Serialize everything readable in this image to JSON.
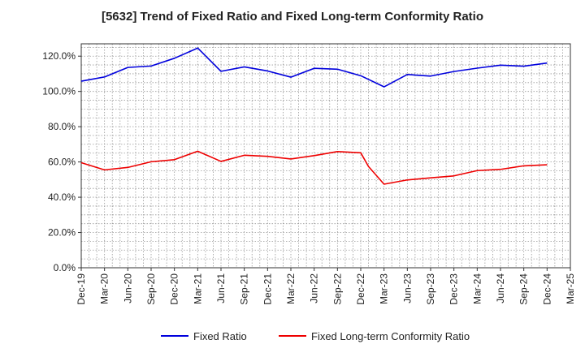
{
  "chart_data": {
    "type": "line",
    "title": "[5632]  Trend of Fixed Ratio and Fixed Long-term Conformity Ratio",
    "xlabel": "",
    "ylabel": "",
    "x_tick_labels": [
      "Dec-19",
      "Mar-20",
      "Jun-20",
      "Sep-20",
      "Dec-20",
      "Mar-21",
      "Jun-21",
      "Sep-21",
      "Dec-21",
      "Mar-22",
      "Jun-22",
      "Sep-22",
      "Dec-22",
      "Mar-23",
      "Jun-23",
      "Sep-23",
      "Dec-23",
      "Mar-24",
      "Jun-24",
      "Sep-24",
      "Dec-24",
      "Mar-25"
    ],
    "y_tick_labels": [
      "0.0%",
      "20.0%",
      "40.0%",
      "60.0%",
      "80.0%",
      "100.0%",
      "120.0%"
    ],
    "y_ticks": [
      0,
      20,
      40,
      60,
      80,
      100,
      120
    ],
    "ylim": [
      0,
      127
    ],
    "grid": true,
    "legend_position": "bottom",
    "series": [
      {
        "name": "Fixed Ratio",
        "color": "#0000dd",
        "points": [
          [
            "Dec-19",
            105.8
          ],
          [
            "Mar-20",
            108.2
          ],
          [
            "Jun-20",
            113.6
          ],
          [
            "Sep-20",
            114.4
          ],
          [
            "Dec-20",
            118.8
          ],
          [
            "Mar-21",
            124.6
          ],
          [
            "Jun-21",
            111.4
          ],
          [
            "Sep-21",
            113.9
          ],
          [
            "Dec-21",
            111.6
          ],
          [
            "Mar-22",
            108.1
          ],
          [
            "Jun-22",
            113.1
          ],
          [
            "Sep-22",
            112.6
          ],
          [
            "Dec-22",
            108.9
          ],
          [
            "Mar-23",
            102.6
          ],
          [
            "Jun-23",
            109.6
          ],
          [
            "Sep-23",
            108.7
          ],
          [
            "Dec-23",
            111.3
          ],
          [
            "Mar-24",
            113.2
          ],
          [
            "Jun-24",
            114.9
          ],
          [
            "Sep-24",
            114.3
          ],
          [
            "Dec-24",
            116.1
          ]
        ]
      },
      {
        "name": "Fixed Long-term Conformity Ratio",
        "color": "#ee0000",
        "points": [
          [
            "Dec-19",
            59.6
          ],
          [
            "Mar-20",
            55.5
          ],
          [
            "Jun-20",
            56.9
          ],
          [
            "Sep-20",
            60.1
          ],
          [
            "Dec-20",
            61.3
          ],
          [
            "Mar-21",
            66.1
          ],
          [
            "Jun-21",
            60.3
          ],
          [
            "Sep-21",
            63.8
          ],
          [
            "Dec-21",
            63.2
          ],
          [
            "Mar-22",
            61.7
          ],
          [
            "Jun-22",
            63.6
          ],
          [
            "Sep-22",
            65.9
          ],
          [
            "Dec-22",
            65.2
          ],
          [
            "Jan-23",
            57.4
          ],
          [
            "Mar-23",
            47.4
          ],
          [
            "Jun-23",
            49.8
          ],
          [
            "Sep-23",
            51.0
          ],
          [
            "Dec-23",
            52.1
          ],
          [
            "Mar-24",
            55.1
          ],
          [
            "Jun-24",
            55.8
          ],
          [
            "Sep-24",
            57.8
          ],
          [
            "Dec-24",
            58.4
          ]
        ]
      }
    ]
  }
}
